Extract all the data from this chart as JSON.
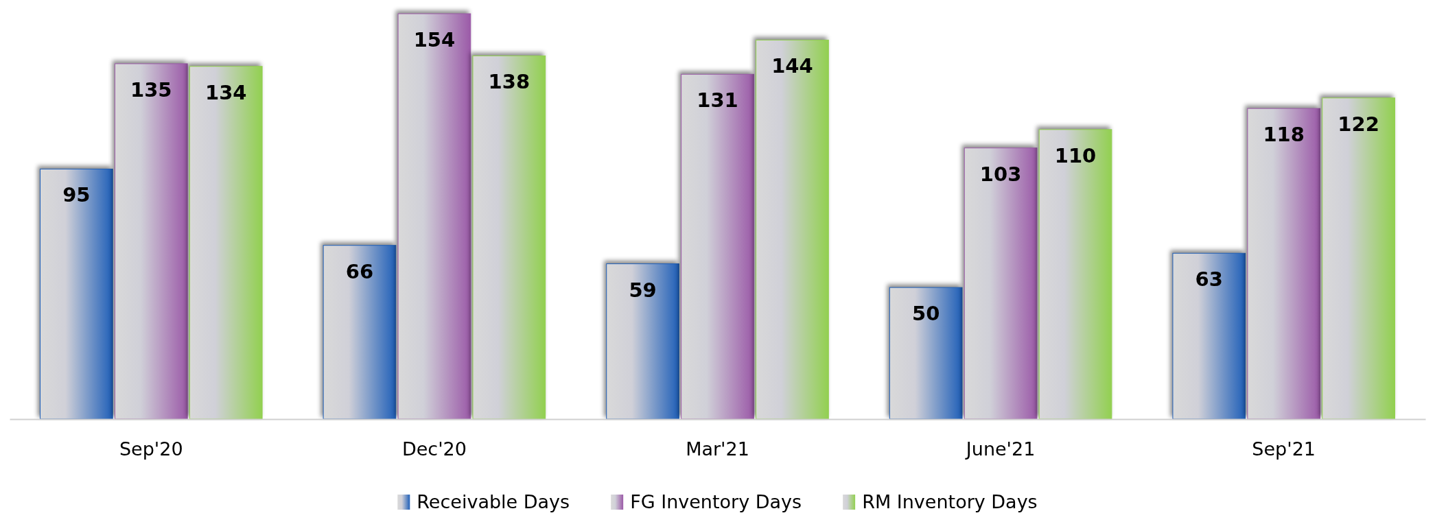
{
  "chart_data": {
    "type": "bar",
    "categories": [
      "Sep'20",
      "Dec'20",
      "Mar'21",
      "June'21",
      "Sep'21"
    ],
    "series": [
      {
        "name": "Receivable Days",
        "color": "#1f5fb8",
        "values": [
          95,
          66,
          59,
          50,
          63
        ]
      },
      {
        "name": "FG Inventory Days",
        "color": "#9b5aa8",
        "values": [
          135,
          154,
          131,
          103,
          118
        ]
      },
      {
        "name": "RM Inventory Days",
        "color": "#92d050",
        "values": [
          134,
          138,
          144,
          110,
          122
        ]
      }
    ],
    "data_labels": true,
    "legend": "bottom",
    "grid": false
  }
}
